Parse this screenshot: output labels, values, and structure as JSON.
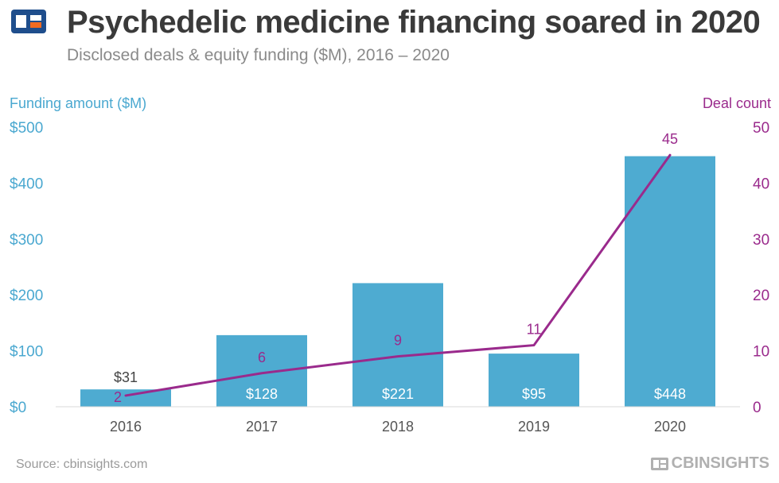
{
  "header": {
    "title": "Psychedelic medicine financing soared in 2020",
    "subtitle": "Disclosed deals & equity funding ($M), 2016 – 2020"
  },
  "colors": {
    "bar": "#4eabd1",
    "line": "#9a2a8c",
    "left_axis": "#4aa8d0",
    "right_axis": "#9a2a8c",
    "title": "#3a3a3a"
  },
  "chart_data": {
    "type": "bar",
    "title": "Psychedelic medicine financing soared in 2020",
    "subtitle": "Disclosed deals & equity funding ($M), 2016 – 2020",
    "categories": [
      "2016",
      "2017",
      "2018",
      "2019",
      "2020"
    ],
    "series": [
      {
        "name": "Funding amount ($M)",
        "type": "bar",
        "axis": "left",
        "values": [
          31,
          128,
          221,
          95,
          448
        ],
        "labels": [
          "$31",
          "$128",
          "$221",
          "$95",
          "$448"
        ]
      },
      {
        "name": "Deal count",
        "type": "line",
        "axis": "right",
        "values": [
          2,
          6,
          9,
          11,
          45
        ],
        "labels": [
          "2",
          "6",
          "9",
          "11",
          "45"
        ]
      }
    ],
    "left_axis": {
      "title": "Funding amount ($M)",
      "ylim": [
        0,
        500
      ],
      "ticks": [
        "$0",
        "$100",
        "$200",
        "$300",
        "$400",
        "$500"
      ]
    },
    "right_axis": {
      "title": "Deal count",
      "ylim": [
        0,
        50
      ],
      "ticks": [
        "0",
        "10",
        "20",
        "30",
        "40",
        "50"
      ]
    },
    "grid": false
  },
  "footer": {
    "source": "Source: cbinsights.com",
    "brand": "CBINSIGHTS"
  }
}
